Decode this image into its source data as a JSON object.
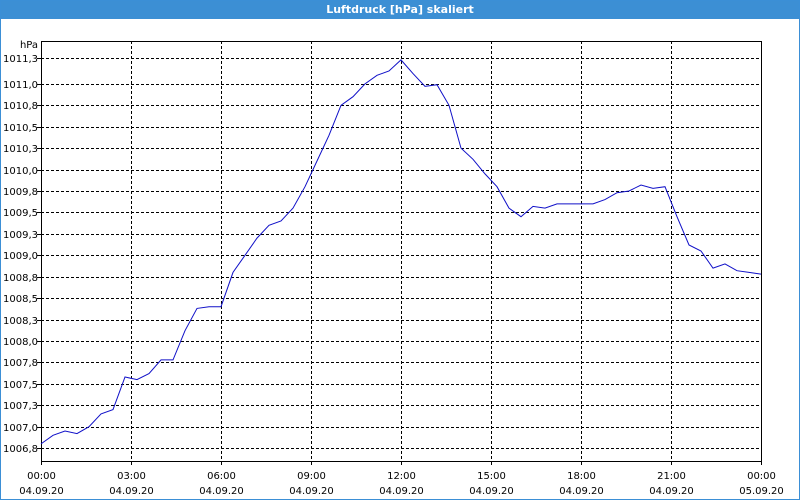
{
  "window": {
    "title": "Luftdruck [hPa] skaliert"
  },
  "chart_data": {
    "type": "line",
    "title": "Luftdruck [hPa] skaliert",
    "ylabel": "hPa",
    "xlabel": "",
    "ylim": [
      1006.6,
      1011.5
    ],
    "y_ticks": [
      "1011,3",
      "1011,0",
      "1010,8",
      "1010,5",
      "1010,3",
      "1010,0",
      "1009,8",
      "1009,5",
      "1009,3",
      "1009,0",
      "1008,8",
      "1008,5",
      "1008,3",
      "1008,0",
      "1007,8",
      "1007,5",
      "1007,3",
      "1007,0",
      "1006,8"
    ],
    "y_tick_values": [
      1011.3,
      1011.0,
      1010.75,
      1010.5,
      1010.25,
      1010.0,
      1009.75,
      1009.5,
      1009.25,
      1009.0,
      1008.75,
      1008.5,
      1008.25,
      1008.0,
      1007.75,
      1007.5,
      1007.25,
      1007.0,
      1006.75
    ],
    "x_ticks": [
      {
        "time": "00:00",
        "date": "04.09.20"
      },
      {
        "time": "03:00",
        "date": "04.09.20"
      },
      {
        "time": "06:00",
        "date": "04.09.20"
      },
      {
        "time": "09:00",
        "date": "04.09.20"
      },
      {
        "time": "12:00",
        "date": "04.09.20"
      },
      {
        "time": "15:00",
        "date": "04.09.20"
      },
      {
        "time": "18:00",
        "date": "04.09.20"
      },
      {
        "time": "21:00",
        "date": "04.09.20"
      },
      {
        "time": "00:00",
        "date": "05.09.20"
      }
    ],
    "grid": true,
    "line_color": "#1010c8",
    "series": [
      {
        "x": [
          0.0,
          0.4,
          0.8,
          1.2,
          1.6,
          2.0,
          2.4,
          2.8,
          3.2,
          3.6,
          4.0,
          4.4,
          4.8,
          5.2,
          5.6,
          6.0,
          6.4,
          6.8,
          7.2,
          7.6,
          8.0,
          8.4,
          8.8,
          9.2,
          9.6,
          10.0,
          10.4,
          10.8,
          11.2,
          11.6,
          12.0,
          12.4,
          12.8,
          13.2,
          13.6,
          14.0,
          14.4,
          14.8,
          15.2,
          15.6,
          16.0,
          16.4,
          16.8,
          17.2,
          17.6,
          18.0,
          18.4,
          18.8,
          19.2,
          19.6,
          20.0,
          20.4,
          20.8,
          21.2,
          21.6,
          22.0,
          22.4,
          22.8,
          23.2,
          23.6,
          24.0
        ],
        "y": [
          1006.8,
          1006.9,
          1006.95,
          1006.92,
          1007.0,
          1007.15,
          1007.2,
          1007.58,
          1007.55,
          1007.62,
          1007.78,
          1007.78,
          1008.12,
          1008.38,
          1008.4,
          1008.4,
          1008.8,
          1009.0,
          1009.2,
          1009.35,
          1009.4,
          1009.55,
          1009.8,
          1010.1,
          1010.4,
          1010.75,
          1010.85,
          1011.0,
          1011.1,
          1011.15,
          1011.28,
          1011.12,
          1010.97,
          1010.99,
          1010.75,
          1010.25,
          1010.12,
          1009.95,
          1009.8,
          1009.55,
          1009.45,
          1009.57,
          1009.55,
          1009.6,
          1009.6,
          1009.6,
          1009.6,
          1009.65,
          1009.73,
          1009.75,
          1009.82,
          1009.78,
          1009.8,
          1009.45,
          1009.12,
          1009.05,
          1008.85,
          1008.9,
          1008.82,
          1008.8,
          1008.78
        ]
      }
    ]
  }
}
